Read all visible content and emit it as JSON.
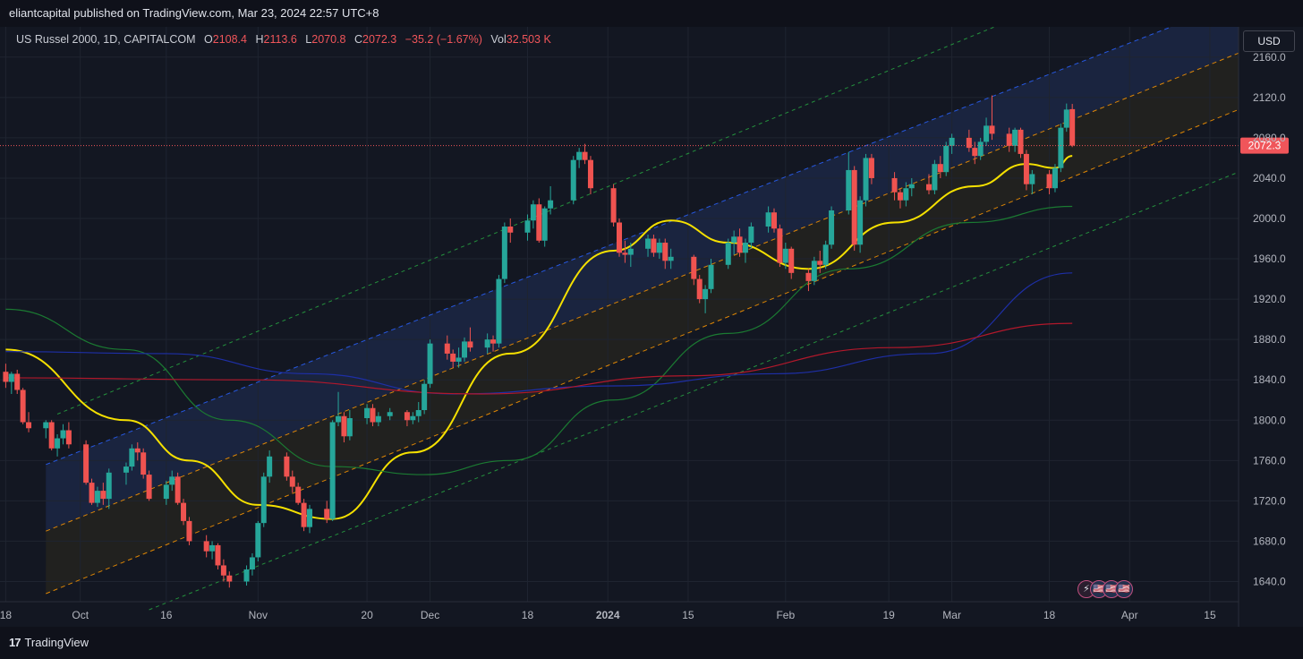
{
  "header": {
    "published": "eliantcapital published on TradingView.com, Mar 23, 2024 22:57 UTC+8"
  },
  "legend": {
    "symbol": "US Russel 2000, 1D, CAPITALCOM",
    "open_label": "O",
    "open": "2108.4",
    "high_label": "H",
    "high": "2113.6",
    "low_label": "L",
    "low": "2070.8",
    "close_label": "C",
    "close": "2072.3",
    "change": "−35.2 (−1.67%)",
    "vol_label": "Vol",
    "vol": "32.503 K"
  },
  "currency": "USD",
  "footer": {
    "brand": "TradingView"
  },
  "events": [
    "⚡",
    "🇺🇸",
    "🇺🇸",
    "🇺🇸"
  ],
  "colors": {
    "up": "#26a69a",
    "down": "#ef5350",
    "ma20": "#f5e000",
    "ma50": "#1b7a32",
    "ma100": "#1e2fa6",
    "ma200": "#b2182b",
    "price_label": "#f0555a"
  },
  "chart_data": {
    "type": "candlestick",
    "last_price": 2072.3,
    "ylim": [
      1620,
      2190
    ],
    "y_ticks": [
      1640,
      1680,
      1720,
      1760,
      1800,
      1840,
      1880,
      1920,
      1960,
      2000,
      2040,
      2080,
      2120,
      2160
    ],
    "y_tick_labels": [
      "1640.0",
      "1680.0",
      "1720.0",
      "1760.0",
      "1800.0",
      "1840.0",
      "1880.0",
      "1920.0",
      "1960.0",
      "2000.0",
      "2040.0",
      "2080.0",
      "2120.0",
      "2160.0"
    ],
    "x_range": [
      "2023-09-17",
      "2024-04-20"
    ],
    "x_ticks": [
      {
        "label": "18",
        "date": "2023-09-18"
      },
      {
        "label": "Oct",
        "date": "2023-10-01"
      },
      {
        "label": "16",
        "date": "2023-10-16"
      },
      {
        "label": "Nov",
        "date": "2023-11-01"
      },
      {
        "label": "20",
        "date": "2023-11-20"
      },
      {
        "label": "Dec",
        "date": "2023-12-01"
      },
      {
        "label": "18",
        "date": "2023-12-18"
      },
      {
        "label": "2024",
        "date": "2024-01-01"
      },
      {
        "label": "15",
        "date": "2024-01-15"
      },
      {
        "label": "Feb",
        "date": "2024-02-01"
      },
      {
        "label": "19",
        "date": "2024-02-19"
      },
      {
        "label": "Mar",
        "date": "2024-03-01"
      },
      {
        "label": "18",
        "date": "2024-03-18"
      },
      {
        "label": "Apr",
        "date": "2024-04-01"
      },
      {
        "label": "15",
        "date": "2024-04-15"
      }
    ],
    "candles": [
      [
        "2023-09-18",
        1848,
        1856,
        1832,
        1838
      ],
      [
        "2023-09-19",
        1838,
        1848,
        1826,
        1846
      ],
      [
        "2023-09-20",
        1846,
        1850,
        1826,
        1830
      ],
      [
        "2023-09-21",
        1830,
        1832,
        1796,
        1798
      ],
      [
        "2023-09-22",
        1798,
        1808,
        1788,
        1792
      ],
      [
        "2023-09-25",
        1792,
        1800,
        1782,
        1798
      ],
      [
        "2023-09-26",
        1798,
        1800,
        1770,
        1772
      ],
      [
        "2023-09-27",
        1772,
        1786,
        1764,
        1782
      ],
      [
        "2023-09-28",
        1782,
        1796,
        1776,
        1790
      ],
      [
        "2023-09-29",
        1790,
        1798,
        1772,
        1776
      ],
      [
        "2023-10-02",
        1776,
        1780,
        1736,
        1738
      ],
      [
        "2023-10-03",
        1738,
        1742,
        1716,
        1718
      ],
      [
        "2023-10-04",
        1718,
        1734,
        1714,
        1730
      ],
      [
        "2023-10-05",
        1730,
        1738,
        1716,
        1722
      ],
      [
        "2023-10-06",
        1722,
        1752,
        1712,
        1748
      ],
      [
        "2023-10-09",
        1748,
        1758,
        1736,
        1754
      ],
      [
        "2023-10-10",
        1754,
        1776,
        1750,
        1772
      ],
      [
        "2023-10-11",
        1772,
        1778,
        1760,
        1768
      ],
      [
        "2023-10-12",
        1768,
        1772,
        1742,
        1746
      ],
      [
        "2023-10-13",
        1746,
        1750,
        1720,
        1722
      ],
      [
        "2023-10-16",
        1722,
        1740,
        1716,
        1736
      ],
      [
        "2023-10-17",
        1736,
        1750,
        1730,
        1744
      ],
      [
        "2023-10-18",
        1744,
        1748,
        1716,
        1718
      ],
      [
        "2023-10-19",
        1718,
        1722,
        1696,
        1700
      ],
      [
        "2023-10-20",
        1700,
        1704,
        1676,
        1680
      ],
      [
        "2023-10-23",
        1680,
        1686,
        1664,
        1670
      ],
      [
        "2023-10-24",
        1670,
        1680,
        1662,
        1676
      ],
      [
        "2023-10-25",
        1676,
        1678,
        1652,
        1656
      ],
      [
        "2023-10-26",
        1656,
        1662,
        1640,
        1646
      ],
      [
        "2023-10-27",
        1646,
        1650,
        1634,
        1640
      ],
      [
        "2023-10-30",
        1640,
        1656,
        1636,
        1652
      ],
      [
        "2023-10-31",
        1652,
        1668,
        1646,
        1664
      ],
      [
        "2023-11-01",
        1664,
        1700,
        1660,
        1698
      ],
      [
        "2023-11-02",
        1698,
        1748,
        1694,
        1744
      ],
      [
        "2023-11-03",
        1744,
        1770,
        1738,
        1764
      ],
      [
        "2023-11-06",
        1764,
        1768,
        1740,
        1744
      ],
      [
        "2023-11-07",
        1744,
        1750,
        1728,
        1734
      ],
      [
        "2023-11-08",
        1734,
        1738,
        1716,
        1718
      ],
      [
        "2023-11-09",
        1718,
        1722,
        1690,
        1694
      ],
      [
        "2023-11-10",
        1694,
        1716,
        1688,
        1712
      ],
      [
        "2023-11-13",
        1712,
        1720,
        1698,
        1702
      ],
      [
        "2023-11-14",
        1702,
        1800,
        1700,
        1798
      ],
      [
        "2023-11-15",
        1798,
        1828,
        1794,
        1804
      ],
      [
        "2023-11-16",
        1804,
        1808,
        1778,
        1784
      ],
      [
        "2023-11-17",
        1784,
        1810,
        1780,
        1802
      ],
      [
        "2023-11-20",
        1802,
        1816,
        1796,
        1812
      ],
      [
        "2023-11-21",
        1812,
        1816,
        1794,
        1798
      ],
      [
        "2023-11-22",
        1798,
        1808,
        1794,
        1804
      ],
      [
        "2023-11-24",
        1804,
        1812,
        1800,
        1808
      ],
      [
        "2023-11-27",
        1808,
        1810,
        1794,
        1800
      ],
      [
        "2023-11-28",
        1800,
        1808,
        1796,
        1804
      ],
      [
        "2023-11-29",
        1804,
        1818,
        1798,
        1810
      ],
      [
        "2023-11-30",
        1810,
        1840,
        1806,
        1836
      ],
      [
        "2023-12-01",
        1836,
        1880,
        1832,
        1876
      ],
      [
        "2023-12-04",
        1876,
        1884,
        1860,
        1866
      ],
      [
        "2023-12-05",
        1866,
        1870,
        1852,
        1858
      ],
      [
        "2023-12-06",
        1858,
        1872,
        1852,
        1862
      ],
      [
        "2023-12-07",
        1862,
        1882,
        1858,
        1878
      ],
      [
        "2023-12-08",
        1878,
        1892,
        1868,
        1872
      ],
      [
        "2023-12-11",
        1872,
        1886,
        1866,
        1880
      ],
      [
        "2023-12-12",
        1880,
        1884,
        1868,
        1876
      ],
      [
        "2023-12-13",
        1876,
        1944,
        1872,
        1940
      ],
      [
        "2023-12-14",
        1940,
        1996,
        1936,
        1992
      ],
      [
        "2023-12-15",
        1992,
        2000,
        1976,
        1986
      ],
      [
        "2023-12-18",
        1986,
        2004,
        1978,
        1998
      ],
      [
        "2023-12-19",
        1998,
        2018,
        1990,
        2014
      ],
      [
        "2023-12-20",
        2014,
        2020,
        1976,
        1978
      ],
      [
        "2023-12-21",
        1978,
        2012,
        1972,
        2010
      ],
      [
        "2023-12-22",
        2010,
        2032,
        2004,
        2018
      ],
      [
        "2023-12-26",
        2018,
        2062,
        2014,
        2058
      ],
      [
        "2023-12-27",
        2058,
        2070,
        2050,
        2066
      ],
      [
        "2023-12-28",
        2066,
        2074,
        2054,
        2058
      ],
      [
        "2023-12-29",
        2058,
        2062,
        2024,
        2030
      ],
      [
        "2024-01-02",
        2030,
        2034,
        1992,
        1996
      ],
      [
        "2024-01-03",
        1996,
        2000,
        1962,
        1966
      ],
      [
        "2024-01-04",
        1966,
        1978,
        1956,
        1964
      ],
      [
        "2024-01-05",
        1964,
        1976,
        1952,
        1970
      ],
      [
        "2024-01-08",
        1970,
        1984,
        1962,
        1980
      ],
      [
        "2024-01-09",
        1980,
        1984,
        1962,
        1966
      ],
      [
        "2024-01-10",
        1966,
        1980,
        1960,
        1976
      ],
      [
        "2024-01-11",
        1976,
        1980,
        1950,
        1958
      ],
      [
        "2024-01-12",
        1958,
        1970,
        1950,
        1962
      ],
      [
        "2024-01-16",
        1962,
        1964,
        1934,
        1940
      ],
      [
        "2024-01-17",
        1940,
        1944,
        1916,
        1920
      ],
      [
        "2024-01-18",
        1920,
        1934,
        1906,
        1930
      ],
      [
        "2024-01-19",
        1930,
        1960,
        1926,
        1954
      ],
      [
        "2024-01-22",
        1954,
        1980,
        1950,
        1976
      ],
      [
        "2024-01-23",
        1976,
        1988,
        1964,
        1982
      ],
      [
        "2024-01-24",
        1982,
        1990,
        1962,
        1966
      ],
      [
        "2024-01-25",
        1966,
        1980,
        1956,
        1976
      ],
      [
        "2024-01-26",
        1976,
        1996,
        1970,
        1992
      ],
      [
        "2024-01-29",
        1992,
        2012,
        1986,
        2006
      ],
      [
        "2024-01-30",
        2006,
        2010,
        1986,
        1990
      ],
      [
        "2024-01-31",
        1990,
        1994,
        1952,
        1956
      ],
      [
        "2024-02-01",
        1956,
        1976,
        1950,
        1970
      ],
      [
        "2024-02-02",
        1970,
        1972,
        1940,
        1946
      ],
      [
        "2024-02-05",
        1946,
        1950,
        1928,
        1938
      ],
      [
        "2024-02-06",
        1938,
        1962,
        1934,
        1958
      ],
      [
        "2024-02-07",
        1958,
        1968,
        1946,
        1954
      ],
      [
        "2024-02-08",
        1954,
        1978,
        1950,
        1974
      ],
      [
        "2024-02-09",
        1974,
        2012,
        1970,
        2008
      ],
      [
        "2024-02-12",
        2008,
        2066,
        2004,
        2048
      ],
      [
        "2024-02-13",
        2048,
        2052,
        1968,
        1974
      ],
      [
        "2024-02-14",
        1974,
        2022,
        1966,
        2018
      ],
      [
        "2024-02-15",
        2018,
        2064,
        2012,
        2060
      ],
      [
        "2024-02-16",
        2060,
        2064,
        2034,
        2040
      ],
      [
        "2024-02-20",
        2040,
        2046,
        2018,
        2026
      ],
      [
        "2024-02-21",
        2026,
        2030,
        2010,
        2018
      ],
      [
        "2024-02-22",
        2018,
        2036,
        2012,
        2030
      ],
      [
        "2024-02-23",
        2030,
        2040,
        2022,
        2034
      ],
      [
        "2024-02-26",
        2034,
        2044,
        2024,
        2028
      ],
      [
        "2024-02-27",
        2028,
        2058,
        2024,
        2054
      ],
      [
        "2024-02-28",
        2054,
        2062,
        2040,
        2046
      ],
      [
        "2024-02-29",
        2046,
        2076,
        2042,
        2072
      ],
      [
        "2024-03-01",
        2072,
        2084,
        2064,
        2080
      ],
      [
        "2024-03-04",
        2080,
        2088,
        2066,
        2070
      ],
      [
        "2024-03-05",
        2070,
        2076,
        2054,
        2062
      ],
      [
        "2024-03-06",
        2062,
        2080,
        2058,
        2076
      ],
      [
        "2024-03-07",
        2076,
        2100,
        2072,
        2092
      ],
      [
        "2024-03-08",
        2092,
        2122,
        2078,
        2084
      ],
      [
        "2024-03-11",
        2084,
        2090,
        2066,
        2072
      ],
      [
        "2024-03-12",
        2072,
        2090,
        2066,
        2088
      ],
      [
        "2024-03-13",
        2088,
        2090,
        2060,
        2064
      ],
      [
        "2024-03-14",
        2064,
        2068,
        2028,
        2034
      ],
      [
        "2024-03-15",
        2034,
        2048,
        2024,
        2044
      ],
      [
        "2024-03-18",
        2044,
        2048,
        2024,
        2030
      ],
      [
        "2024-03-19",
        2030,
        2054,
        2026,
        2050
      ],
      [
        "2024-03-20",
        2050,
        2094,
        2046,
        2090
      ],
      [
        "2024-03-21",
        2090,
        2114,
        2086,
        2108
      ],
      [
        "2024-03-22",
        2108.4,
        2113.6,
        2070.8,
        2072.3
      ]
    ],
    "moving_averages": [
      {
        "key": "ma20",
        "color": "#f5e000",
        "width": 2,
        "points": [
          [
            "2023-09-18",
            1870
          ],
          [
            "2023-10-09",
            1800
          ],
          [
            "2023-10-20",
            1760
          ],
          [
            "2023-11-01",
            1716
          ],
          [
            "2023-11-14",
            1702
          ],
          [
            "2023-11-28",
            1768
          ],
          [
            "2023-12-15",
            1866
          ],
          [
            "2024-01-02",
            1968
          ],
          [
            "2024-01-12",
            1998
          ],
          [
            "2024-01-22",
            1976
          ],
          [
            "2024-02-05",
            1950
          ],
          [
            "2024-02-20",
            1996
          ],
          [
            "2024-03-05",
            2032
          ],
          [
            "2024-03-14",
            2054
          ],
          [
            "2024-03-19",
            2050
          ],
          [
            "2024-03-22",
            2062
          ]
        ]
      },
      {
        "key": "ma50",
        "color": "#1b7a32",
        "width": 1.2,
        "points": [
          [
            "2023-09-18",
            1910
          ],
          [
            "2023-10-09",
            1870
          ],
          [
            "2023-10-27",
            1800
          ],
          [
            "2023-11-14",
            1754
          ],
          [
            "2023-11-30",
            1746
          ],
          [
            "2023-12-15",
            1760
          ],
          [
            "2024-01-02",
            1820
          ],
          [
            "2024-01-22",
            1886
          ],
          [
            "2024-02-12",
            1950
          ],
          [
            "2024-03-04",
            1996
          ],
          [
            "2024-03-22",
            2012
          ]
        ]
      },
      {
        "key": "ma100",
        "color": "#1e2fa6",
        "width": 1.2,
        "points": [
          [
            "2023-09-18",
            1868
          ],
          [
            "2023-10-16",
            1866
          ],
          [
            "2023-11-10",
            1846
          ],
          [
            "2023-12-05",
            1826
          ],
          [
            "2024-01-02",
            1834
          ],
          [
            "2024-01-30",
            1846
          ],
          [
            "2024-02-26",
            1866
          ],
          [
            "2024-03-22",
            1946
          ]
        ]
      },
      {
        "key": "ma200",
        "color": "#b2182b",
        "width": 1.2,
        "points": [
          [
            "2023-09-18",
            1842
          ],
          [
            "2023-10-30",
            1840
          ],
          [
            "2023-12-10",
            1826
          ],
          [
            "2024-01-15",
            1844
          ],
          [
            "2024-02-20",
            1872
          ],
          [
            "2024-03-22",
            1896
          ]
        ]
      }
    ],
    "channels": [
      {
        "color": "#27a642",
        "dash": "4,4",
        "from": [
          "2023-09-27",
          1806
        ],
        "to": [
          "2024-04-20",
          2290
        ]
      },
      {
        "color": "#2962ff",
        "dash": "5,4",
        "from": [
          "2023-09-25",
          1756
        ],
        "to": [
          "2024-04-20",
          2216
        ]
      },
      {
        "color": "#ff9800",
        "dash": "5,4",
        "from": [
          "2023-09-25",
          1690
        ],
        "to": [
          "2024-04-20",
          2164
        ]
      },
      {
        "color": "#ff9800",
        "dash": "5,4",
        "from": [
          "2023-09-25",
          1628
        ],
        "to": [
          "2024-04-20",
          2108
        ]
      },
      {
        "color": "#27a642",
        "dash": "4,4",
        "from": [
          "2023-10-13",
          1612
        ],
        "to": [
          "2024-04-20",
          2046
        ]
      }
    ],
    "channel_fill_start": "2023-09-25"
  }
}
